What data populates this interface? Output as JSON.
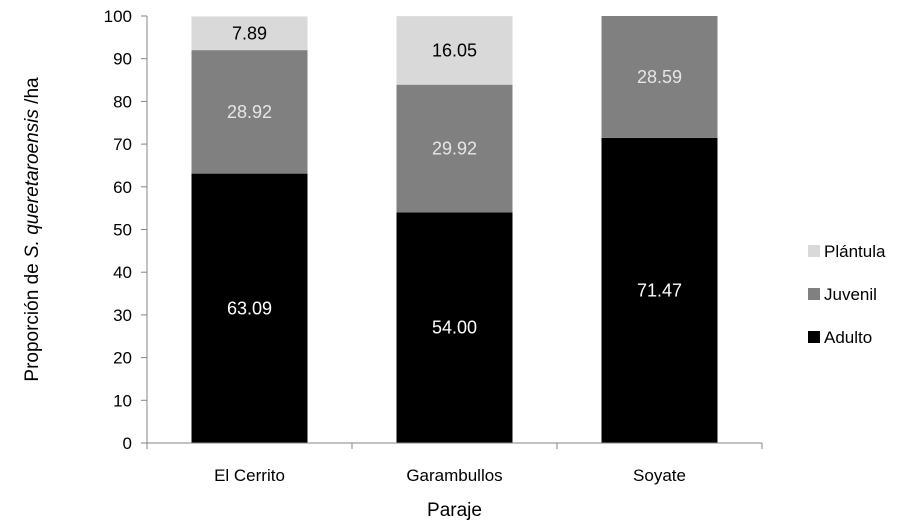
{
  "chart_data": {
    "type": "bar",
    "stacked": true,
    "categories": [
      "El Cerrito",
      "Garambullos",
      "Soyate"
    ],
    "series": [
      {
        "name": "Adulto",
        "values": [
          63.09,
          54.0,
          71.47
        ],
        "labels": [
          "63.09",
          "54.00",
          "71.47"
        ],
        "color": "#000000",
        "label_color": "#ffffff"
      },
      {
        "name": "Juvenil",
        "values": [
          28.92,
          29.92,
          28.59
        ],
        "labels": [
          "28.92",
          "29.92",
          "28.59"
        ],
        "color": "#808080",
        "label_color": "#e6e6e6"
      },
      {
        "name": "Plántula",
        "values": [
          7.89,
          16.05,
          0
        ],
        "labels": [
          "7.89",
          "16.05",
          ""
        ],
        "color": "#d9d9d9",
        "label_color": "#000000"
      }
    ],
    "xlabel": "Paraje",
    "ylabel_prefix": "Proporción de ",
    "ylabel_italic": "S. queretaroensis",
    "ylabel_suffix": " /ha",
    "ylim": [
      0,
      100
    ],
    "yticks": [
      0,
      10,
      20,
      30,
      40,
      50,
      60,
      70,
      80,
      90,
      100
    ],
    "grid": false,
    "legend_position": "right",
    "legend_order": [
      "Plántula",
      "Juvenil",
      "Adulto"
    ]
  }
}
